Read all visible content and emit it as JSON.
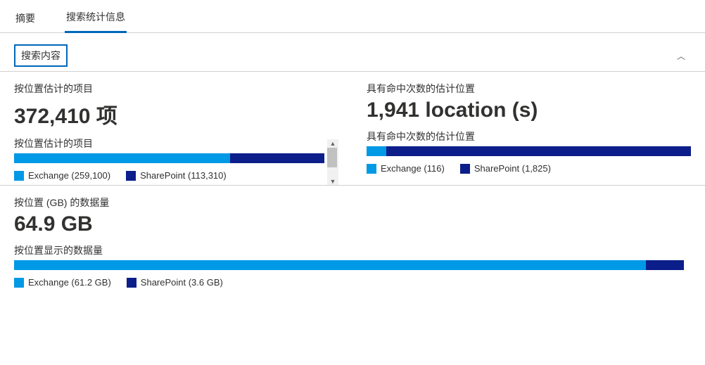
{
  "colors": {
    "exchange": "#0099e6",
    "sharepoint": "#0b1e8a",
    "border": "#d1d1d1",
    "accent": "#0067b8"
  },
  "tabs": {
    "summary": "摘要",
    "stats": "搜索统计信息"
  },
  "section": {
    "title": "搜索内容"
  },
  "items": {
    "label": "按位置估计的项目",
    "value": "372,410 项",
    "sublabel": "按位置估计的项目",
    "exchange_pct": 69.6,
    "sharepoint_pct": 30.4,
    "legend_exchange": "Exchange (259,100)",
    "legend_sharepoint": "SharePoint (113,310)"
  },
  "locations": {
    "label": "具有命中次数的估计位置",
    "value": "1,941 location (s)",
    "sublabel": "具有命中次数的估计位置",
    "exchange_pct": 6.0,
    "sharepoint_pct": 94.0,
    "legend_exchange": "Exchange (116)",
    "legend_sharepoint": "SharePoint (1,825)"
  },
  "data": {
    "label": "按位置 (GB) 的数据量",
    "value": "64.9 GB",
    "sublabel": "按位置显示的数据量",
    "exchange_pct": 94.3,
    "sharepoint_pct": 5.7,
    "legend_exchange": "Exchange (61.2 GB)",
    "legend_sharepoint": "SharePoint (3.6 GB)"
  }
}
